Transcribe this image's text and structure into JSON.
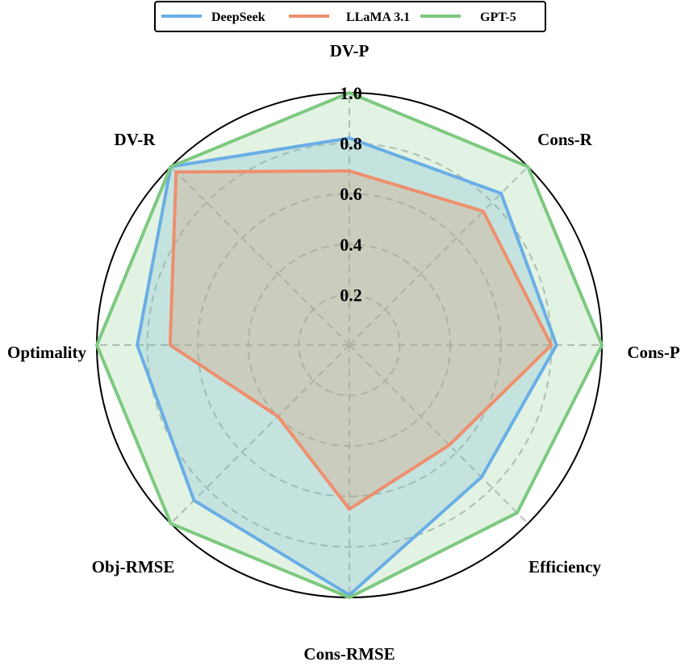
{
  "chart_data": {
    "type": "radar",
    "axes": [
      "DV-P",
      "Cons-R",
      "Cons-P",
      "Efficiency",
      "Cons-RMSE",
      "Obj-RMSE",
      "Optimality",
      "DV-R"
    ],
    "rticks": [
      0.2,
      0.4,
      0.6,
      0.8,
      1.0
    ],
    "rtick_labels": [
      "0.2",
      "0.4",
      "0.6",
      "0.8",
      "1.0"
    ],
    "rlim": [
      0,
      1.0
    ],
    "grid": true,
    "legend": {
      "position": "top-center"
    },
    "series": [
      {
        "name": "DeepSeek",
        "color": "#6aaee6",
        "values": [
          0.82,
          0.85,
          0.82,
          0.74,
          0.99,
          0.87,
          0.84,
          1.0
        ]
      },
      {
        "name": "LLaMA 3.1",
        "color": "#ee8f6e",
        "values": [
          0.69,
          0.75,
          0.8,
          0.56,
          0.65,
          0.4,
          0.71,
          0.97
        ]
      },
      {
        "name": "GPT-5",
        "color": "#7cc97f",
        "values": [
          1.0,
          1.0,
          1.0,
          0.94,
          1.0,
          1.0,
          1.0,
          1.0
        ]
      }
    ]
  }
}
